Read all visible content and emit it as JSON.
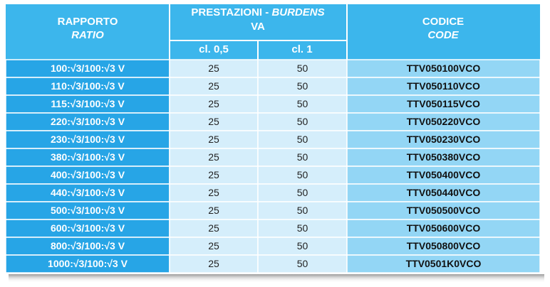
{
  "header": {
    "ratio": "RAPPORTO",
    "ratio_en": "RATIO",
    "burdens_it": "PRESTAZIONI - ",
    "burdens_en": "BURDENS",
    "burdens_unit": "VA",
    "code": "CODICE",
    "code_en": "CODE",
    "class_1": "cl. 0,5",
    "class_2": "cl. 1"
  },
  "table": {
    "rows": [
      [
        "100:√3/100:√3 V",
        25,
        50,
        "TTV050100VCO"
      ],
      [
        "110:√3/100:√3 V",
        25,
        50,
        "TTV050110VCO"
      ],
      [
        "115:√3/100:√3 V",
        25,
        50,
        "TTV050115VCO"
      ],
      [
        "220:√3/100:√3 V",
        25,
        50,
        "TTV050220VCO"
      ],
      [
        "230:√3/100:√3 V",
        25,
        50,
        "TTV050230VCO"
      ],
      [
        "380:√3/100:√3 V",
        25,
        50,
        "TTV050380VCO"
      ],
      [
        "400:√3/100:√3 V",
        25,
        50,
        "TTV050400VCO"
      ],
      [
        "440:√3/100:√3 V",
        25,
        50,
        "TTV050440VCO"
      ],
      [
        "500:√3/100:√3 V",
        25,
        50,
        "TTV050500VCO"
      ],
      [
        "600:√3/100:√3 V",
        25,
        50,
        "TTV050600VCO"
      ],
      [
        "800:√3/100:√3 V",
        25,
        50,
        "TTV050800VCO"
      ],
      [
        "1000:√3/100:√3 V",
        25,
        50,
        "TTV0501K0VCO"
      ]
    ]
  }
}
